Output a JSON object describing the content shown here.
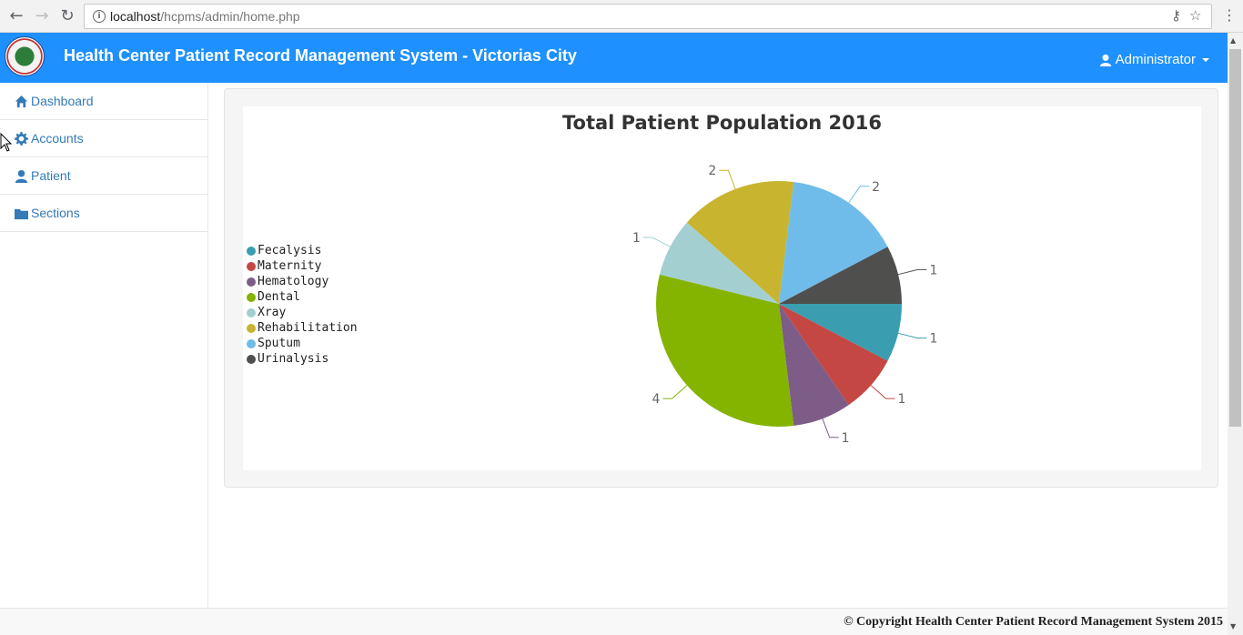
{
  "browser": {
    "url_host": "localhost",
    "url_path": "/hcpms/admin/home.php"
  },
  "header": {
    "title": "Health Center Patient Record Management System - Victorias City",
    "user_label": "Administrator",
    "color": "#1e90ff"
  },
  "sidebar": {
    "items": [
      {
        "label": "Dashboard",
        "icon": "home-icon"
      },
      {
        "label": "Accounts",
        "icon": "gear-icon"
      },
      {
        "label": "Patient",
        "icon": "user-icon"
      },
      {
        "label": "Sections",
        "icon": "folder-icon"
      }
    ]
  },
  "chart_data": {
    "type": "pie",
    "title": "Total Patient Population 2016",
    "legend_position": "left",
    "slices": [
      {
        "label": "Fecalysis",
        "value": 1,
        "color": "#3a9eb0"
      },
      {
        "label": "Maternity",
        "value": 1,
        "color": "#c44743"
      },
      {
        "label": "Hematology",
        "value": 1,
        "color": "#7d5d87"
      },
      {
        "label": "Dental",
        "value": 4,
        "color": "#84b300"
      },
      {
        "label": "Xray",
        "value": 1,
        "color": "#a4cfd1"
      },
      {
        "label": "Rehabilitation",
        "value": 2,
        "color": "#c8b42e"
      },
      {
        "label": "Sputum",
        "value": 2,
        "color": "#6fbcea"
      },
      {
        "label": "Urinalysis",
        "value": 1,
        "color": "#4f4f4d"
      }
    ]
  },
  "footer": {
    "text": "© Copyright Health Center Patient Record Management System 2015"
  }
}
